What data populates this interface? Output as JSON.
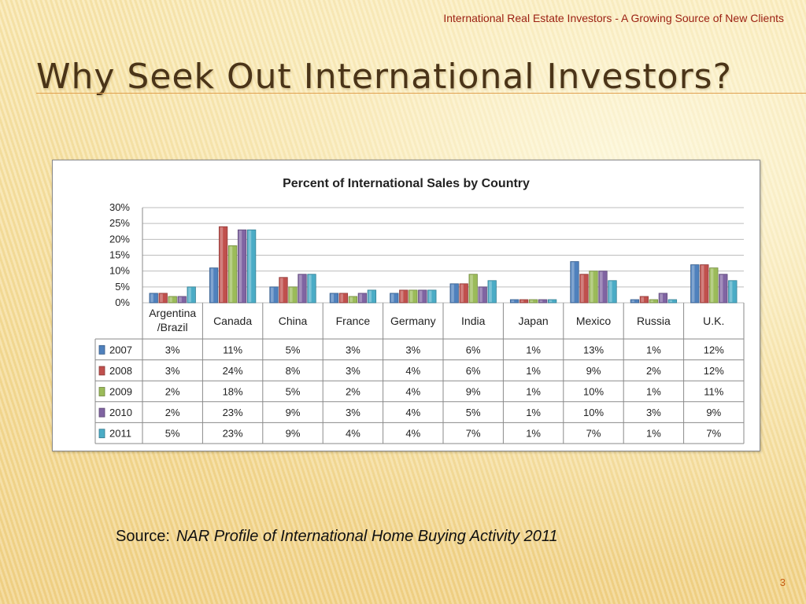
{
  "header": {
    "text": "International Real Estate Investors - A Growing Source of New Clients"
  },
  "page": {
    "title": "Why Seek Out International Investors?",
    "source_label": "Source:",
    "source_title": "NAR Profile of International Home Buying Activity 2011",
    "page_number": "3"
  },
  "chart_data": {
    "type": "bar",
    "title": "Percent of International Sales by Country",
    "xlabel": "",
    "ylabel": "",
    "ylim": [
      0,
      30
    ],
    "yticks": [
      "0%",
      "5%",
      "10%",
      "15%",
      "20%",
      "25%",
      "30%"
    ],
    "grid": true,
    "legend": "data-table",
    "categories": [
      "Argentina /Brazil",
      "Canada",
      "China",
      "France",
      "Germany",
      "India",
      "Japan",
      "Mexico",
      "Russia",
      "U.K."
    ],
    "series": [
      {
        "name": "2007",
        "color": "#4f81bd",
        "values": [
          3,
          11,
          5,
          3,
          3,
          6,
          1,
          13,
          1,
          12
        ]
      },
      {
        "name": "2008",
        "color": "#c0504d",
        "values": [
          3,
          24,
          8,
          3,
          4,
          6,
          1,
          9,
          2,
          12
        ]
      },
      {
        "name": "2009",
        "color": "#9bbb59",
        "values": [
          2,
          18,
          5,
          2,
          4,
          9,
          1,
          10,
          1,
          11
        ]
      },
      {
        "name": "2010",
        "color": "#8064a2",
        "values": [
          2,
          23,
          9,
          3,
          4,
          5,
          1,
          10,
          3,
          9
        ]
      },
      {
        "name": "2011",
        "color": "#4bacc6",
        "values": [
          5,
          23,
          9,
          4,
          4,
          7,
          1,
          7,
          1,
          7
        ]
      }
    ]
  }
}
